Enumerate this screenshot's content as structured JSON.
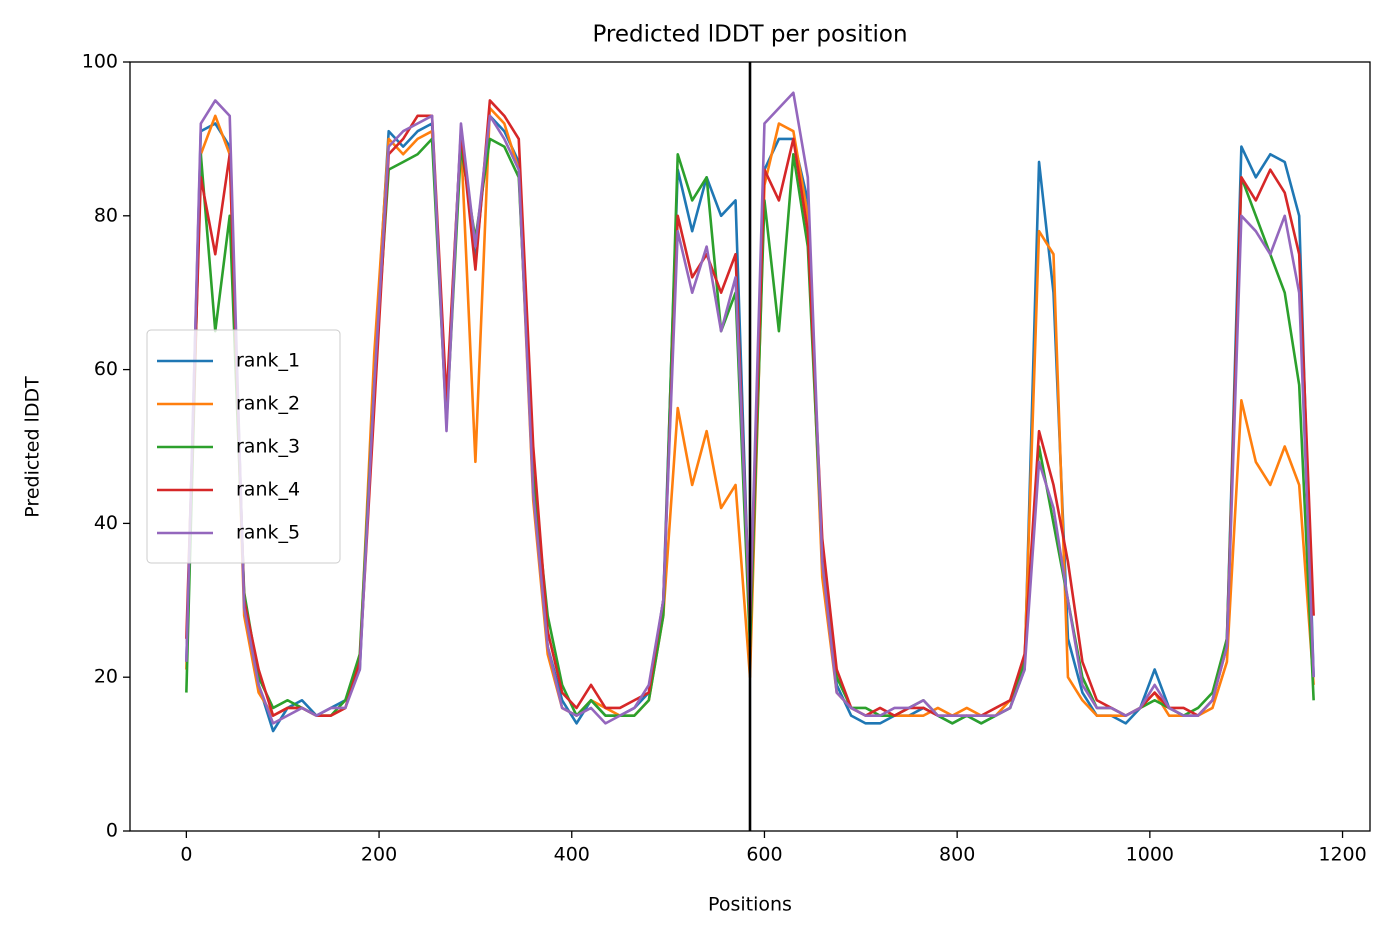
{
  "chart_data": {
    "type": "line",
    "title": "Predicted lDDT per position",
    "x_label": "Positions",
    "y_label": "Predicted lDDT",
    "x": [
      0,
      15,
      30,
      45,
      60,
      75,
      90,
      105,
      120,
      135,
      150,
      165,
      180,
      195,
      210,
      225,
      240,
      255,
      270,
      285,
      300,
      315,
      330,
      345,
      360,
      375,
      390,
      405,
      420,
      435,
      450,
      465,
      480,
      495,
      510,
      525,
      540,
      555,
      570,
      585,
      600,
      615,
      630,
      645,
      660,
      675,
      690,
      705,
      720,
      735,
      750,
      765,
      780,
      795,
      810,
      825,
      840,
      855,
      870,
      885,
      900,
      915,
      930,
      945,
      960,
      975,
      990,
      1005,
      1020,
      1035,
      1050,
      1065,
      1080,
      1095,
      1110,
      1125,
      1140,
      1155,
      1170
    ],
    "series": [
      {
        "name": "rank_1",
        "color": "#1f77b4",
        "values": [
          22,
          91,
          92,
          89,
          30,
          19,
          13,
          16,
          17,
          15,
          16,
          17,
          21,
          60,
          91,
          89,
          91,
          92,
          55,
          91,
          74,
          93,
          91,
          87,
          44,
          24,
          17,
          14,
          17,
          15,
          15,
          16,
          18,
          30,
          86,
          78,
          85,
          80,
          82,
          26,
          86,
          90,
          90,
          82,
          34,
          19,
          15,
          14,
          14,
          15,
          15,
          16,
          15,
          14,
          15,
          14,
          15,
          16,
          21,
          87,
          70,
          25,
          18,
          15,
          15,
          14,
          16,
          21,
          16,
          15,
          15,
          17,
          25,
          89,
          85,
          88,
          87,
          80,
          20
        ]
      },
      {
        "name": "rank_2",
        "color": "#ff7f0e",
        "values": [
          21,
          88,
          93,
          88,
          28,
          18,
          15,
          16,
          16,
          15,
          15,
          16,
          22,
          62,
          90,
          88,
          90,
          91,
          54,
          90,
          48,
          94,
          92,
          86,
          43,
          23,
          16,
          15,
          17,
          16,
          15,
          15,
          17,
          28,
          55,
          45,
          52,
          42,
          45,
          20,
          84,
          92,
          91,
          80,
          33,
          18,
          16,
          15,
          15,
          15,
          15,
          15,
          16,
          15,
          16,
          15,
          15,
          17,
          22,
          78,
          75,
          20,
          17,
          15,
          15,
          15,
          16,
          18,
          15,
          15,
          15,
          16,
          22,
          56,
          48,
          45,
          50,
          45,
          19
        ]
      },
      {
        "name": "rank_3",
        "color": "#2ca02c",
        "values": [
          18,
          88,
          65,
          80,
          31,
          20,
          16,
          17,
          16,
          15,
          15,
          17,
          23,
          58,
          86,
          87,
          88,
          90,
          53,
          89,
          77,
          90,
          89,
          85,
          46,
          28,
          19,
          15,
          17,
          15,
          15,
          15,
          17,
          28,
          88,
          82,
          85,
          65,
          70,
          24,
          82,
          65,
          88,
          76,
          36,
          20,
          16,
          16,
          15,
          15,
          16,
          17,
          15,
          14,
          15,
          14,
          15,
          16,
          22,
          50,
          40,
          30,
          20,
          16,
          16,
          15,
          16,
          17,
          16,
          15,
          16,
          18,
          25,
          85,
          80,
          75,
          70,
          58,
          17
        ]
      },
      {
        "name": "rank_4",
        "color": "#d62728",
        "values": [
          25,
          85,
          75,
          88,
          30,
          21,
          15,
          16,
          16,
          15,
          15,
          16,
          22,
          55,
          88,
          90,
          93,
          93,
          56,
          91,
          73,
          95,
          93,
          90,
          50,
          26,
          18,
          16,
          19,
          16,
          16,
          17,
          18,
          30,
          80,
          72,
          75,
          70,
          75,
          27,
          86,
          82,
          90,
          78,
          38,
          21,
          16,
          15,
          16,
          15,
          16,
          16,
          15,
          15,
          15,
          15,
          16,
          17,
          23,
          52,
          45,
          35,
          22,
          17,
          16,
          15,
          16,
          18,
          16,
          16,
          15,
          17,
          24,
          85,
          82,
          86,
          83,
          75,
          28
        ]
      },
      {
        "name": "rank_5",
        "color": "#9467bd",
        "values": [
          22,
          92,
          95,
          93,
          29,
          19,
          14,
          15,
          16,
          15,
          16,
          16,
          21,
          58,
          89,
          91,
          92,
          93,
          52,
          92,
          76,
          93,
          90,
          86,
          44,
          24,
          16,
          15,
          16,
          14,
          15,
          16,
          19,
          30,
          78,
          70,
          76,
          65,
          72,
          28,
          92,
          94,
          96,
          85,
          35,
          18,
          16,
          15,
          15,
          16,
          16,
          17,
          15,
          15,
          15,
          15,
          15,
          16,
          21,
          48,
          42,
          30,
          19,
          16,
          16,
          15,
          16,
          19,
          16,
          15,
          15,
          17,
          24,
          80,
          78,
          75,
          80,
          70,
          20
        ]
      }
    ],
    "vline_x": 585,
    "vline_color": "#000000",
    "xlim": [
      -58.5,
      1228.5
    ],
    "ylim": [
      0,
      100
    ],
    "xticks": [
      0,
      200,
      400,
      600,
      800,
      1000,
      1200
    ],
    "yticks": [
      0,
      20,
      40,
      60,
      80,
      100
    ],
    "legend": "center left",
    "grid": false
  }
}
